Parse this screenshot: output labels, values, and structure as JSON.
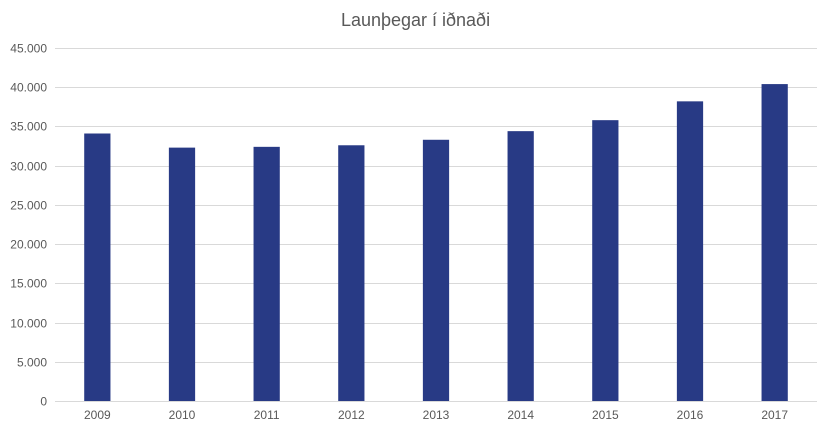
{
  "chart_data": {
    "type": "bar",
    "title": "Launþegar í iðnaði",
    "xlabel": "",
    "ylabel": "",
    "categories": [
      "2009",
      "2010",
      "2011",
      "2012",
      "2013",
      "2014",
      "2015",
      "2016",
      "2017"
    ],
    "values": [
      34100,
      32300,
      32400,
      32600,
      33300,
      34400,
      35800,
      38200,
      40400
    ],
    "ylim": [
      0,
      45000
    ],
    "yticks": [
      0,
      5000,
      10000,
      15000,
      20000,
      25000,
      30000,
      35000,
      40000,
      45000
    ],
    "ytick_labels": [
      "0",
      "5.000",
      "10.000",
      "15.000",
      "20.000",
      "25.000",
      "30.000",
      "35.000",
      "40.000",
      "45.000"
    ],
    "grid": true,
    "legend": "none",
    "colors": {
      "bar": "#283a85",
      "grid": "#d9d9d9",
      "text": "#595959"
    }
  }
}
